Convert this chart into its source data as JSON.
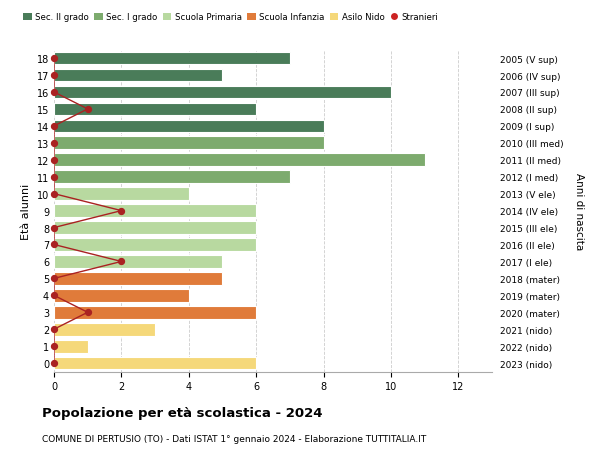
{
  "ages": [
    18,
    17,
    16,
    15,
    14,
    13,
    12,
    11,
    10,
    9,
    8,
    7,
    6,
    5,
    4,
    3,
    2,
    1,
    0
  ],
  "right_labels": [
    "2005 (V sup)",
    "2006 (IV sup)",
    "2007 (III sup)",
    "2008 (II sup)",
    "2009 (I sup)",
    "2010 (III med)",
    "2011 (II med)",
    "2012 (I med)",
    "2013 (V ele)",
    "2014 (IV ele)",
    "2015 (III ele)",
    "2016 (II ele)",
    "2017 (I ele)",
    "2018 (mater)",
    "2019 (mater)",
    "2020 (mater)",
    "2021 (nido)",
    "2022 (nido)",
    "2023 (nido)"
  ],
  "bar_values": [
    7,
    5,
    10,
    6,
    8,
    8,
    11,
    7,
    4,
    6,
    6,
    6,
    5,
    5,
    4,
    6,
    3,
    1,
    6
  ],
  "bar_colors": [
    "#4a7c59",
    "#4a7c59",
    "#4a7c59",
    "#4a7c59",
    "#4a7c59",
    "#7dab6e",
    "#7dab6e",
    "#7dab6e",
    "#b8d9a0",
    "#b8d9a0",
    "#b8d9a0",
    "#b8d9a0",
    "#b8d9a0",
    "#e07b3a",
    "#e07b3a",
    "#e07b3a",
    "#f5d87a",
    "#f5d87a",
    "#f5d87a"
  ],
  "stranieri_x": [
    0,
    0,
    0,
    1,
    0,
    0,
    0,
    0,
    0,
    2,
    0,
    0,
    2,
    0,
    0,
    1,
    0,
    0,
    0
  ],
  "legend_labels": [
    "Sec. II grado",
    "Sec. I grado",
    "Scuola Primaria",
    "Scuola Infanzia",
    "Asilo Nido",
    "Stranieri"
  ],
  "legend_colors": [
    "#4a7c59",
    "#7dab6e",
    "#b8d9a0",
    "#e07b3a",
    "#f5d87a",
    "#cc2222"
  ],
  "ylabel_left": "Età alunni",
  "ylabel_right": "Anni di nascita",
  "title": "Popolazione per età scolastica - 2024",
  "subtitle": "COMUNE DI PERTUSIO (TO) - Dati ISTAT 1° gennaio 2024 - Elaborazione TUTTITALIA.IT",
  "background_color": "#ffffff",
  "grid_color": "#cccccc",
  "stranieri_color": "#aa2222"
}
